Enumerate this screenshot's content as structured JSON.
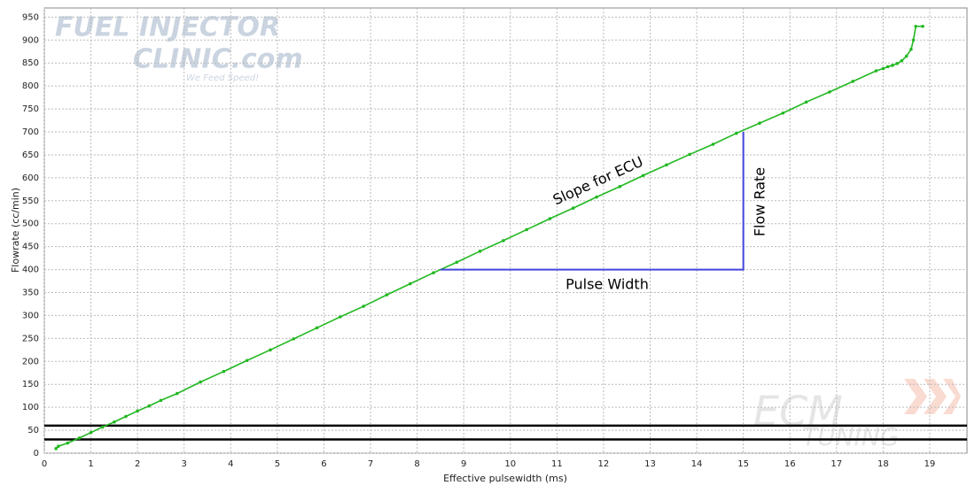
{
  "chart_data": {
    "type": "line",
    "x_label": "Effective pulsewidth (ms)",
    "y_label": "Flowrate (cc/min)",
    "xlim": [
      0,
      19.8
    ],
    "ylim": [
      0,
      970
    ],
    "xticks": [
      0,
      1,
      2,
      3,
      4,
      5,
      6,
      7,
      8,
      9,
      10,
      11,
      12,
      13,
      14,
      15,
      16,
      17,
      18,
      19
    ],
    "yticks": [
      0,
      50,
      100,
      150,
      200,
      250,
      300,
      350,
      400,
      450,
      500,
      550,
      600,
      650,
      700,
      750,
      800,
      850,
      900,
      950
    ],
    "grid": true,
    "series": [
      {
        "color": "#22b822",
        "x": [
          0.25,
          0.3,
          0.5,
          0.75,
          1,
          1.25,
          1.5,
          1.75,
          2,
          2.25,
          2.5,
          2.85,
          3.35,
          3.85,
          4.35,
          4.85,
          5.35,
          5.85,
          6.35,
          6.85,
          7.35,
          7.85,
          8.35,
          8.85,
          9.35,
          9.85,
          10.35,
          10.85,
          11.35,
          11.85,
          12.35,
          12.85,
          13.35,
          13.85,
          14.35,
          14.85,
          15.35,
          15.85,
          16.35,
          16.85,
          17.35,
          17.85,
          18,
          18.1,
          18.2,
          18.3,
          18.4,
          18.5,
          18.6,
          18.65,
          18.7,
          18.85
        ],
        "values": [
          10,
          15,
          22,
          33,
          45,
          57,
          68,
          80,
          92,
          103,
          115,
          130,
          155,
          178,
          202,
          225,
          249,
          273,
          297,
          320,
          345,
          369,
          393,
          416,
          440,
          463,
          487,
          511,
          534,
          558,
          581,
          605,
          628,
          651,
          673,
          697,
          719,
          741,
          765,
          787,
          810,
          833,
          838,
          842,
          845,
          849,
          855,
          865,
          880,
          900,
          930,
          930
        ]
      }
    ],
    "guides": [
      {
        "x": [
          8.5,
          15,
          15
        ],
        "y": [
          400,
          400,
          700
        ],
        "color": "#4444dd"
      }
    ],
    "hlines": [
      {
        "y": 60,
        "color": "#000000"
      },
      {
        "y": 30,
        "color": "#000000"
      }
    ],
    "annotations": [
      "Slope for ECU",
      "Flow Rate",
      "Pulse Width"
    ],
    "logos": [
      "FUEL INJECTOR",
      "CLINIC.com",
      "We Feed Speed!",
      "ECM",
      "TUNING"
    ]
  }
}
